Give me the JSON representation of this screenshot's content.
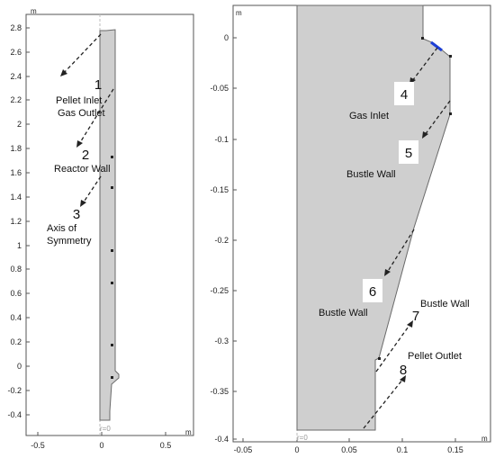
{
  "colors": {
    "body_fill": "#cfcfcf",
    "body_stroke": "#6a6a6a",
    "inlet_edge": "#1d3fd6",
    "axis_line": "#bdbdbd"
  },
  "left_panel": {
    "y_unit": "m",
    "x_unit": "m",
    "y_ticks": [
      "2.8",
      "2.6",
      "2.4",
      "2.2",
      "2",
      "1.8",
      "1.6",
      "1.4",
      "1.2",
      "1",
      "0.8",
      "0.6",
      "0.4",
      "0.2",
      "0",
      "-0.2",
      "-0.4"
    ],
    "x_ticks": [
      "-0.5",
      "0",
      "0.5"
    ],
    "axis_marker": "r=0",
    "labels": {
      "n1": "1",
      "t1a": "Pellet Inlet",
      "t1b": "Gas Outlet",
      "n2": "2",
      "t2": "Reactor Wall",
      "n3": "3",
      "t3a": "Axis of",
      "t3b": "Symmetry"
    }
  },
  "right_panel": {
    "y_unit": "m",
    "x_unit": "m",
    "y_ticks": [
      "0",
      "-0.05",
      "-0.1",
      "-0.15",
      "-0.2",
      "-0.25",
      "-0.3",
      "-0.35",
      "-0.4"
    ],
    "x_ticks": [
      "-0.05",
      "0",
      "0.05",
      "0.1",
      "0.15"
    ],
    "axis_marker": "r=0",
    "labels": {
      "n4": "4",
      "t4": "Gas Inlet",
      "n5": "5",
      "t5": "Bustle Wall",
      "n6": "6",
      "t6": "Bustle Wall",
      "n7": "7",
      "t7": "Bustle Wall",
      "n8": "8",
      "t8": "Pellet Outlet"
    }
  }
}
